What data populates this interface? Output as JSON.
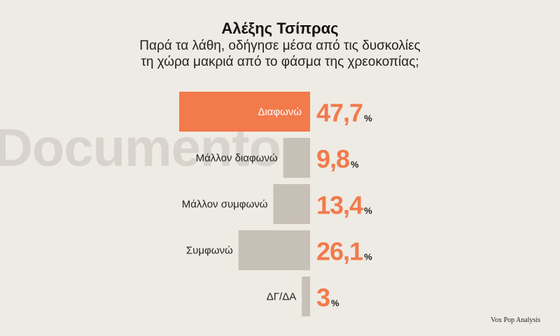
{
  "title": "Αλέξης Τσίπρας",
  "subtitle_line1": "Παρά τα λάθη, οδήγησε μέσα από τις δυσκολίες",
  "subtitle_line2": "τη χώρα μακριά από το φάσμα της χρεοκοπίας;",
  "watermark": "Documento",
  "source": "Vox Pop Analysis",
  "colors": {
    "highlight": "#f27a4b",
    "bar": "#c7c0b6",
    "value_text": "#f27a4b",
    "background": "#eeebe4"
  },
  "chart_data": {
    "type": "bar",
    "orientation": "horizontal",
    "categories": [
      "Διαφωνώ",
      "Μάλλον διαφωνώ",
      "Μάλλον συμφωνώ",
      "Συμφωνώ",
      "ΔΓ/ΔΑ"
    ],
    "values": [
      47.7,
      9.8,
      13.4,
      26.1,
      3
    ],
    "value_labels": [
      "47,7",
      "9,8",
      "13,4",
      "26,1",
      "3"
    ],
    "unit": "%",
    "highlighted_index": 0,
    "bar_direction": "right-to-left",
    "grid": false,
    "legend": "none"
  }
}
